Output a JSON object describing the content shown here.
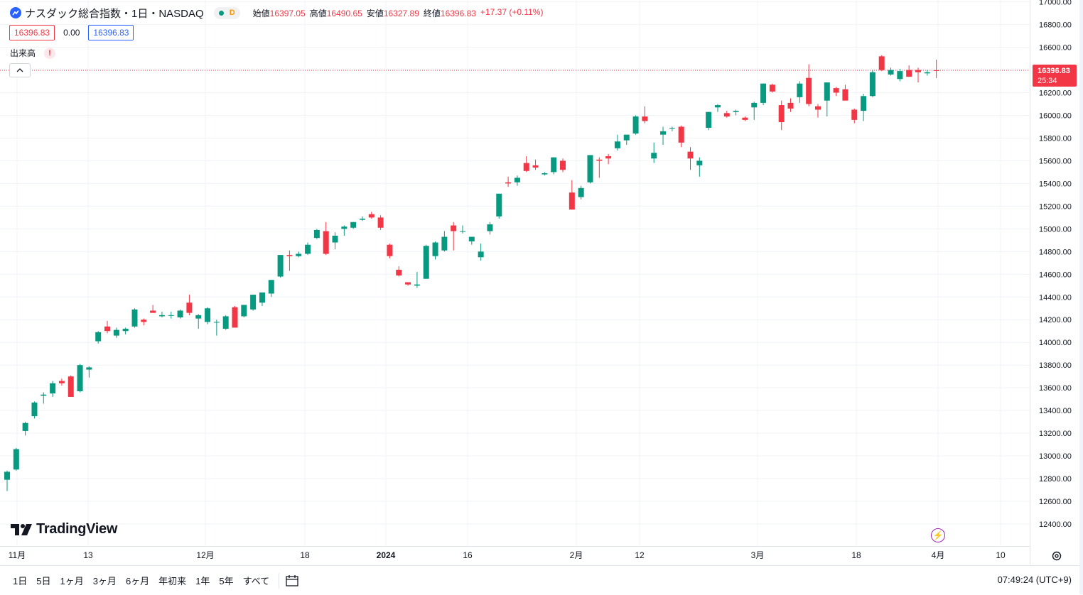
{
  "symbol": {
    "title": "ナスダック総合指数・1日・NASDAQ",
    "market_badge": "D",
    "ohlc": [
      {
        "label": "始値",
        "value": "16397.05"
      },
      {
        "label": "高値",
        "value": "16490.65"
      },
      {
        "label": "安値",
        "value": "16327.89"
      },
      {
        "label": "終値",
        "value": "16396.83"
      },
      {
        "label": "",
        "value": "+17.37 (+0.11%)"
      }
    ]
  },
  "price_boxes": {
    "bid": "16396.83",
    "spread": "0.00",
    "ask": "16396.83"
  },
  "volume": {
    "label": "出来高",
    "warning": "!"
  },
  "logo": {
    "text": "TradingView"
  },
  "current_price": {
    "price": "16396.83",
    "countdown": "25:34"
  },
  "time_labels": [
    "11月",
    "13",
    "12月",
    "18",
    "2024",
    "16",
    "2月",
    "12",
    "3月",
    "18",
    "4月",
    "10"
  ],
  "bottom_bar": {
    "ranges": [
      "1日",
      "5日",
      "1ヶ月",
      "3ヶ月",
      "6ヶ月",
      "年初来",
      "1年",
      "5年",
      "すべて"
    ],
    "clock": "07:49:24 (UTC+9)"
  },
  "colors": {
    "up": "#089981",
    "down": "#f23645",
    "grid": "#f0f3fa"
  },
  "chart_data": {
    "type": "candlestick",
    "y_axis_ticks": [
      12400,
      12600,
      12800,
      13000,
      13200,
      13400,
      13600,
      13800,
      14000,
      14200,
      14400,
      14600,
      14800,
      15000,
      15200,
      15400,
      15600,
      15800,
      16000,
      16200,
      16400,
      16600,
      16800,
      17000
    ],
    "ylim": [
      12300,
      17010
    ],
    "candles": [
      {
        "o": 12790,
        "h": 12870,
        "l": 12690,
        "c": 12860
      },
      {
        "o": 12880,
        "h": 13070,
        "l": 12870,
        "c": 13060
      },
      {
        "o": 13220,
        "h": 13300,
        "l": 13180,
        "c": 13290
      },
      {
        "o": 13350,
        "h": 13480,
        "l": 13330,
        "c": 13470
      },
      {
        "o": 13530,
        "h": 13560,
        "l": 13460,
        "c": 13540
      },
      {
        "o": 13550,
        "h": 13660,
        "l": 13520,
        "c": 13640
      },
      {
        "o": 13660,
        "h": 13680,
        "l": 13620,
        "c": 13640
      },
      {
        "o": 13700,
        "h": 13710,
        "l": 13520,
        "c": 13520
      },
      {
        "o": 13570,
        "h": 13810,
        "l": 13560,
        "c": 13800
      },
      {
        "o": 13760,
        "h": 13790,
        "l": 13690,
        "c": 13780
      },
      {
        "o": 14010,
        "h": 14100,
        "l": 13990,
        "c": 14090
      },
      {
        "o": 14140,
        "h": 14190,
        "l": 14080,
        "c": 14100
      },
      {
        "o": 14060,
        "h": 14130,
        "l": 14040,
        "c": 14110
      },
      {
        "o": 14100,
        "h": 14130,
        "l": 14070,
        "c": 14120
      },
      {
        "o": 14140,
        "h": 14300,
        "l": 14130,
        "c": 14290
      },
      {
        "o": 14200,
        "h": 14210,
        "l": 14150,
        "c": 14180
      },
      {
        "o": 14280,
        "h": 14330,
        "l": 14260,
        "c": 14260
      },
      {
        "o": 14230,
        "h": 14270,
        "l": 14220,
        "c": 14240
      },
      {
        "o": 14240,
        "h": 14270,
        "l": 14210,
        "c": 14240
      },
      {
        "o": 14220,
        "h": 14290,
        "l": 14210,
        "c": 14280
      },
      {
        "o": 14350,
        "h": 14420,
        "l": 14240,
        "c": 14260
      },
      {
        "o": 14210,
        "h": 14250,
        "l": 14120,
        "c": 14240
      },
      {
        "o": 14180,
        "h": 14310,
        "l": 14160,
        "c": 14300
      },
      {
        "o": 14180,
        "h": 14200,
        "l": 14060,
        "c": 14180
      },
      {
        "o": 14120,
        "h": 14240,
        "l": 14110,
        "c": 14230
      },
      {
        "o": 14310,
        "h": 14320,
        "l": 14130,
        "c": 14130
      },
      {
        "o": 14230,
        "h": 14330,
        "l": 14220,
        "c": 14330
      },
      {
        "o": 14290,
        "h": 14410,
        "l": 14280,
        "c": 14420
      },
      {
        "o": 14350,
        "h": 14420,
        "l": 14320,
        "c": 14440
      },
      {
        "o": 14430,
        "h": 14550,
        "l": 14400,
        "c": 14550
      },
      {
        "o": 14580,
        "h": 14770,
        "l": 14570,
        "c": 14770
      },
      {
        "o": 14770,
        "h": 14810,
        "l": 14630,
        "c": 14760
      },
      {
        "o": 14760,
        "h": 14800,
        "l": 14750,
        "c": 14780
      },
      {
        "o": 14780,
        "h": 14880,
        "l": 14770,
        "c": 14860
      },
      {
        "o": 14920,
        "h": 15000,
        "l": 14910,
        "c": 14990
      },
      {
        "o": 14980,
        "h": 15060,
        "l": 14770,
        "c": 14780
      },
      {
        "o": 14880,
        "h": 14970,
        "l": 14820,
        "c": 14940
      },
      {
        "o": 15000,
        "h": 15030,
        "l": 14940,
        "c": 15020
      },
      {
        "o": 15010,
        "h": 15060,
        "l": 15000,
        "c": 15060
      },
      {
        "o": 15080,
        "h": 15110,
        "l": 15070,
        "c": 15090
      },
      {
        "o": 15130,
        "h": 15150,
        "l": 15090,
        "c": 15100
      },
      {
        "o": 15100,
        "h": 15120,
        "l": 14990,
        "c": 15010
      },
      {
        "o": 14860,
        "h": 14870,
        "l": 14740,
        "c": 14760
      },
      {
        "o": 14640,
        "h": 14670,
        "l": 14580,
        "c": 14590
      },
      {
        "o": 14530,
        "h": 14530,
        "l": 14500,
        "c": 14510
      },
      {
        "o": 14500,
        "h": 14620,
        "l": 14480,
        "c": 14510
      },
      {
        "o": 14560,
        "h": 14860,
        "l": 14560,
        "c": 14850
      },
      {
        "o": 14760,
        "h": 14890,
        "l": 14730,
        "c": 14880
      },
      {
        "o": 14810,
        "h": 14980,
        "l": 14800,
        "c": 14930
      },
      {
        "o": 15030,
        "h": 15060,
        "l": 14810,
        "c": 14980
      },
      {
        "o": 14980,
        "h": 15030,
        "l": 14960,
        "c": 14980
      },
      {
        "o": 14890,
        "h": 14930,
        "l": 14860,
        "c": 14930
      },
      {
        "o": 14750,
        "h": 14870,
        "l": 14720,
        "c": 14800
      },
      {
        "o": 14980,
        "h": 15060,
        "l": 14950,
        "c": 15040
      },
      {
        "o": 15110,
        "h": 15310,
        "l": 15090,
        "c": 15310
      },
      {
        "o": 15410,
        "h": 15460,
        "l": 15370,
        "c": 15400
      },
      {
        "o": 15410,
        "h": 15470,
        "l": 15380,
        "c": 15450
      },
      {
        "o": 15580,
        "h": 15640,
        "l": 15500,
        "c": 15510
      },
      {
        "o": 15560,
        "h": 15610,
        "l": 15520,
        "c": 15540
      },
      {
        "o": 15480,
        "h": 15500,
        "l": 15470,
        "c": 15490
      },
      {
        "o": 15500,
        "h": 15630,
        "l": 15480,
        "c": 15630
      },
      {
        "o": 15600,
        "h": 15620,
        "l": 15500,
        "c": 15520
      },
      {
        "o": 15320,
        "h": 15430,
        "l": 15170,
        "c": 15170
      },
      {
        "o": 15280,
        "h": 15380,
        "l": 15260,
        "c": 15360
      },
      {
        "o": 15410,
        "h": 15650,
        "l": 15400,
        "c": 15650
      },
      {
        "o": 15610,
        "h": 15630,
        "l": 15450,
        "c": 15600
      },
      {
        "o": 15640,
        "h": 15660,
        "l": 15570,
        "c": 15620
      },
      {
        "o": 15710,
        "h": 15830,
        "l": 15690,
        "c": 15770
      },
      {
        "o": 15780,
        "h": 15830,
        "l": 15740,
        "c": 15830
      },
      {
        "o": 15840,
        "h": 16000,
        "l": 15830,
        "c": 15990
      },
      {
        "o": 15990,
        "h": 16080,
        "l": 15930,
        "c": 15950
      },
      {
        "o": 15620,
        "h": 15760,
        "l": 15580,
        "c": 15670
      },
      {
        "o": 15830,
        "h": 15900,
        "l": 15740,
        "c": 15860
      },
      {
        "o": 15890,
        "h": 15900,
        "l": 15860,
        "c": 15890
      },
      {
        "o": 15900,
        "h": 15910,
        "l": 15720,
        "c": 15760
      },
      {
        "o": 15680,
        "h": 15720,
        "l": 15520,
        "c": 15620
      },
      {
        "o": 15560,
        "h": 15630,
        "l": 15460,
        "c": 15600
      },
      {
        "o": 15890,
        "h": 16030,
        "l": 15870,
        "c": 16030
      },
      {
        "o": 16070,
        "h": 16100,
        "l": 16030,
        "c": 16090
      },
      {
        "o": 16020,
        "h": 16040,
        "l": 15980,
        "c": 15990
      },
      {
        "o": 16030,
        "h": 16050,
        "l": 16000,
        "c": 16040
      },
      {
        "o": 15980,
        "h": 15990,
        "l": 15950,
        "c": 15960
      },
      {
        "o": 16070,
        "h": 16120,
        "l": 15960,
        "c": 16110
      },
      {
        "o": 16110,
        "h": 16280,
        "l": 16090,
        "c": 16280
      },
      {
        "o": 16270,
        "h": 16280,
        "l": 16200,
        "c": 16210
      },
      {
        "o": 16090,
        "h": 16130,
        "l": 15870,
        "c": 15940
      },
      {
        "o": 16110,
        "h": 16150,
        "l": 16030,
        "c": 16060
      },
      {
        "o": 16160,
        "h": 16300,
        "l": 16110,
        "c": 16280
      },
      {
        "o": 16330,
        "h": 16450,
        "l": 16080,
        "c": 16100
      },
      {
        "o": 16080,
        "h": 16100,
        "l": 15980,
        "c": 16050
      },
      {
        "o": 16130,
        "h": 16290,
        "l": 15990,
        "c": 16290
      },
      {
        "o": 16240,
        "h": 16250,
        "l": 16170,
        "c": 16200
      },
      {
        "o": 16230,
        "h": 16270,
        "l": 16160,
        "c": 16130
      },
      {
        "o": 16050,
        "h": 16060,
        "l": 15930,
        "c": 15960
      },
      {
        "o": 16040,
        "h": 16190,
        "l": 15950,
        "c": 16170
      },
      {
        "o": 16170,
        "h": 16400,
        "l": 16160,
        "c": 16380
      },
      {
        "o": 16520,
        "h": 16530,
        "l": 16390,
        "c": 16400
      },
      {
        "o": 16360,
        "h": 16420,
        "l": 16350,
        "c": 16400
      },
      {
        "o": 16320,
        "h": 16410,
        "l": 16300,
        "c": 16390
      },
      {
        "o": 16400,
        "h": 16440,
        "l": 16340,
        "c": 16340
      },
      {
        "o": 16400,
        "h": 16420,
        "l": 16290,
        "c": 16380
      },
      {
        "o": 16370,
        "h": 16400,
        "l": 16350,
        "c": 16380
      },
      {
        "o": 16397.05,
        "h": 16490.65,
        "l": 16327.89,
        "c": 16396.83
      }
    ]
  }
}
